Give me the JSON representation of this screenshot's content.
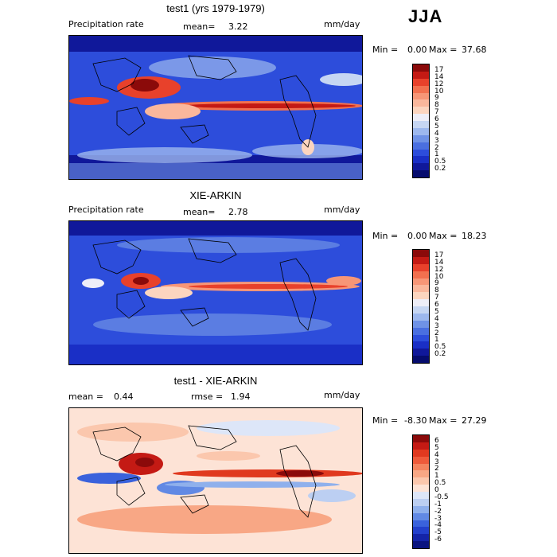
{
  "season": "JJA",
  "panels": [
    {
      "title": "test1 (yrs 1979-1979)",
      "var_label": "Precipitation rate",
      "stat1_label": "mean=",
      "stat1_value": "3.22",
      "stat2_label": "",
      "stat2_value": "",
      "units": "mm/day",
      "min_label": "Min =",
      "min_value": "0.00",
      "max_label": "Max =",
      "max_value": "37.68",
      "legend_ticks": [
        "17",
        "14",
        "12",
        "10",
        "9",
        "8",
        "7",
        "6",
        "5",
        "4",
        "3",
        "2",
        "1",
        "0.5",
        "0.2"
      ],
      "legend_colors": [
        "#8b0a0a",
        "#c41a14",
        "#e8412b",
        "#f2704f",
        "#f79677",
        "#fab79c",
        "#fcd5bf",
        "#eeeef8",
        "#c6d6f3",
        "#9db8ee",
        "#6f92e6",
        "#4a6fe0",
        "#2d4ddb",
        "#1a2fc6",
        "#10189a",
        "#060c6e"
      ]
    },
    {
      "title": "XIE-ARKIN",
      "var_label": "Precipitation rate",
      "stat1_label": "mean=",
      "stat1_value": "2.78",
      "stat2_label": "",
      "stat2_value": "",
      "units": "mm/day",
      "min_label": "Min =",
      "min_value": "0.00",
      "max_label": "Max =",
      "max_value": "18.23",
      "legend_ticks": [
        "17",
        "14",
        "12",
        "10",
        "9",
        "8",
        "7",
        "6",
        "5",
        "4",
        "3",
        "2",
        "1",
        "0.5",
        "0.2"
      ],
      "legend_colors": [
        "#8b0a0a",
        "#c41a14",
        "#e8412b",
        "#f2704f",
        "#f79677",
        "#fab79c",
        "#fcd5bf",
        "#eeeef8",
        "#c6d6f3",
        "#9db8ee",
        "#6f92e6",
        "#4a6fe0",
        "#2d4ddb",
        "#1a2fc6",
        "#10189a",
        "#060c6e"
      ]
    },
    {
      "title": "test1 - XIE-ARKIN",
      "var_label": "",
      "stat1_label": "mean =",
      "stat1_value": "0.44",
      "stat2_label": "rmse =",
      "stat2_value": "1.94",
      "units": "mm/day",
      "min_label": "Min =",
      "min_value": "-8.30",
      "max_label": "Max =",
      "max_value": "27.29",
      "legend_ticks": [
        "6",
        "5",
        "4",
        "3",
        "2",
        "1",
        "0.5",
        "0",
        "-0.5",
        "-1",
        "-2",
        "-3",
        "-4",
        "-5",
        "-6"
      ],
      "legend_colors": [
        "#8b0a0a",
        "#c41a14",
        "#e0391f",
        "#ee5a3a",
        "#f4845f",
        "#f8a785",
        "#fbc7ad",
        "#fde3d6",
        "#dde6f8",
        "#bccff2",
        "#8fb0ec",
        "#6189e4",
        "#3a62dc",
        "#2340cc",
        "#1424a8",
        "#0a1480"
      ]
    }
  ]
}
